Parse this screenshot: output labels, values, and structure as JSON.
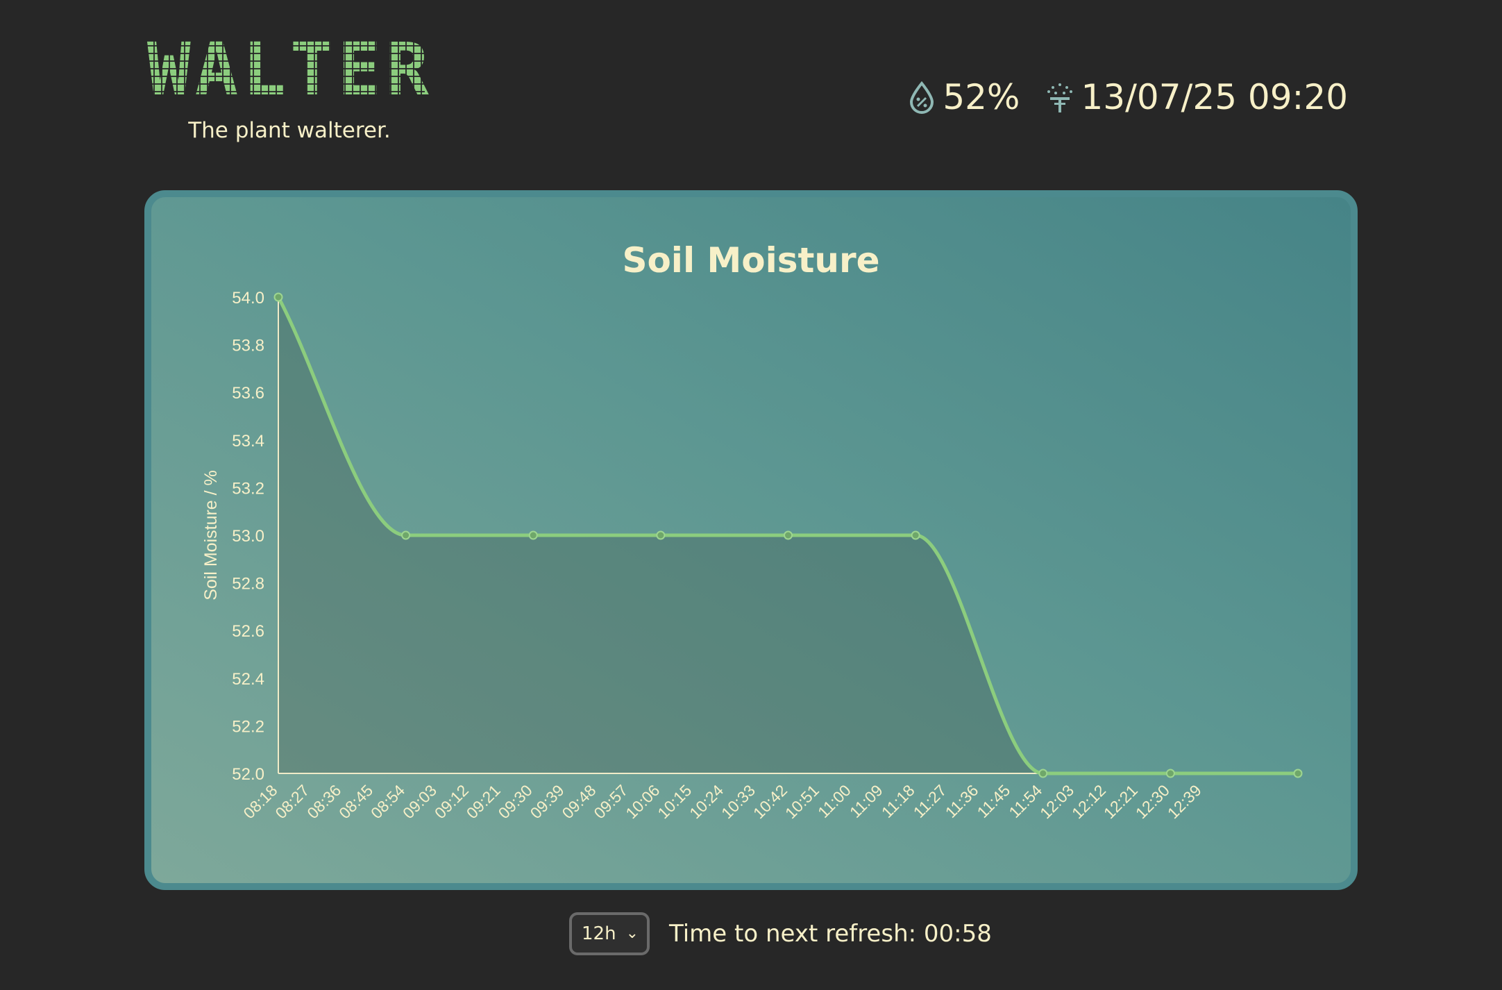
{
  "header": {
    "logo_text": "WALTER",
    "tagline": "The plant walterer.",
    "moisture_value": "52%",
    "last_watered": "13/07/25 09:20",
    "icons": [
      "moisture-drop-icon",
      "watering-can-icon"
    ]
  },
  "colors": {
    "background": "#272727",
    "accent_green": "#8ccd7e",
    "text_cream": "#f7f0c8",
    "card_border": "#4c8a8e"
  },
  "chart_data": {
    "type": "area",
    "title": "Soil Moisture",
    "xlabel": "",
    "ylabel": "Soil Moisture / %",
    "ylim": [
      52.0,
      54.0
    ],
    "yticks": [
      "54.0",
      "53.8",
      "53.6",
      "53.4",
      "53.2",
      "53.0",
      "52.8",
      "52.6",
      "52.4",
      "52.2",
      "52.0"
    ],
    "x_ticks": [
      "08:18",
      "08:27",
      "08:36",
      "08:45",
      "08:54",
      "09:03",
      "09:12",
      "09:21",
      "09:30",
      "09:39",
      "09:48",
      "09:57",
      "10:06",
      "10:15",
      "10:24",
      "10:33",
      "10:42",
      "10:51",
      "11:00",
      "11:09",
      "11:18",
      "11:27",
      "11:36",
      "11:45",
      "11:54",
      "12:03",
      "12:12",
      "12:21",
      "12:30",
      "12:39"
    ],
    "series": [
      {
        "x": [
          "08:18",
          "08:54",
          "09:30",
          "10:06",
          "10:42",
          "11:18",
          "11:54",
          "12:30",
          "13:06"
        ],
        "values": [
          54.0,
          53.0,
          53.0,
          53.0,
          53.0,
          53.0,
          52.0,
          52.0,
          52.0
        ]
      }
    ],
    "grid": false,
    "legend": "none"
  },
  "controls": {
    "range_selected": "12h",
    "refresh_text": "Time to next refresh: 00:58"
  }
}
